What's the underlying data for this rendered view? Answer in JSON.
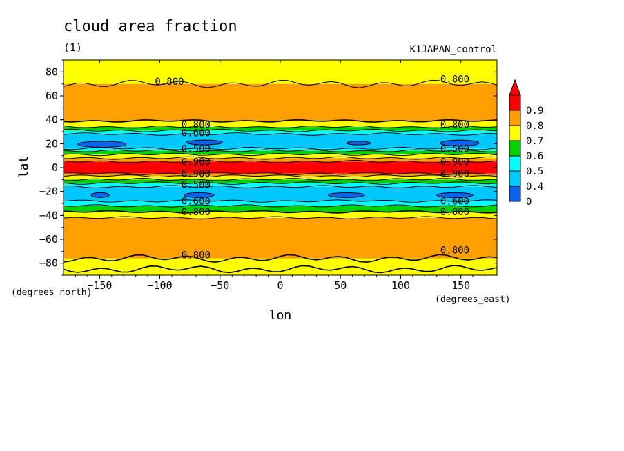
{
  "chart_data": {
    "type": "heatmap",
    "title": "cloud area fraction",
    "subtitle": "(1)",
    "run_label": "K1JAPAN_control",
    "xlabel": "lon",
    "ylabel": "lat",
    "x_units": "(degrees_east)",
    "y_units": "(degrees_north)",
    "xlim": [
      -180,
      180
    ],
    "ylim": [
      -90,
      90
    ],
    "x_ticks": [
      -150,
      -100,
      -50,
      0,
      50,
      100,
      150
    ],
    "y_ticks": [
      -80,
      -60,
      -40,
      -20,
      0,
      20,
      40,
      60,
      80
    ],
    "x_tick_labels": [
      "−150",
      "−100",
      "−50",
      "0",
      "50",
      "100",
      "150"
    ],
    "y_tick_labels": [
      "−80",
      "−60",
      "−40",
      "−20",
      "0",
      "20",
      "40",
      "60",
      "80"
    ],
    "colorbar": {
      "levels": [
        0,
        0.4,
        0.5,
        0.6,
        0.7,
        0.8,
        0.9
      ],
      "labels": [
        "0",
        "0.4",
        "0.5",
        "0.6",
        "0.7",
        "0.8",
        "0.9"
      ],
      "colors": [
        "#0a64f0",
        "#00c8ff",
        "#00ffff",
        "#00d200",
        "#ffff00",
        "#ffa000",
        "#ff0000"
      ],
      "extend": "max"
    },
    "lat_bands": [
      {
        "from": -90,
        "to": -85,
        "value": 0.75
      },
      {
        "from": -85,
        "to": -76,
        "value": 0.75
      },
      {
        "from": -76,
        "to": -42,
        "value": 0.85
      },
      {
        "from": -42,
        "to": -37,
        "value": 0.75
      },
      {
        "from": -37,
        "to": -32,
        "value": 0.65
      },
      {
        "from": -32,
        "to": -28,
        "value": 0.55
      },
      {
        "from": -28,
        "to": -16,
        "value": 0.45
      },
      {
        "from": -16,
        "to": -13,
        "value": 0.55
      },
      {
        "from": -13,
        "to": -10,
        "value": 0.65
      },
      {
        "from": -10,
        "to": -7,
        "value": 0.75
      },
      {
        "from": -7,
        "to": -5,
        "value": 0.85
      },
      {
        "from": -5,
        "to": 5,
        "value": 0.95
      },
      {
        "from": 5,
        "to": 8,
        "value": 0.85
      },
      {
        "from": 8,
        "to": 11,
        "value": 0.75
      },
      {
        "from": 11,
        "to": 14,
        "value": 0.65
      },
      {
        "from": 14,
        "to": 16,
        "value": 0.55
      },
      {
        "from": 16,
        "to": 28,
        "value": 0.45
      },
      {
        "from": 28,
        "to": 31,
        "value": 0.55
      },
      {
        "from": 31,
        "to": 34,
        "value": 0.65
      },
      {
        "from": 34,
        "to": 39,
        "value": 0.75
      },
      {
        "from": 39,
        "to": 70,
        "value": 0.85
      },
      {
        "from": 70,
        "to": 90,
        "value": 0.75
      }
    ],
    "low_patches": [
      {
        "lon_from": -168,
        "lon_to": -128,
        "lat_from": 17,
        "lat_to": 22,
        "value": 0.35
      },
      {
        "lon_from": -78,
        "lon_to": -48,
        "lat_from": 19,
        "lat_to": 23,
        "value": 0.35
      },
      {
        "lon_from": 55,
        "lon_to": 75,
        "lat_from": 19,
        "lat_to": 22,
        "value": 0.35
      },
      {
        "lon_from": 133,
        "lon_to": 165,
        "lat_from": 18,
        "lat_to": 23,
        "value": 0.35
      },
      {
        "lon_from": -157,
        "lon_to": -142,
        "lat_from": -25,
        "lat_to": -21,
        "value": 0.35
      },
      {
        "lon_from": -80,
        "lon_to": -55,
        "lat_from": -25,
        "lat_to": -21,
        "value": 0.35
      },
      {
        "lon_from": 40,
        "lon_to": 70,
        "lat_from": -25,
        "lat_to": -21,
        "value": 0.35
      },
      {
        "lon_from": 130,
        "lon_to": 160,
        "lat_from": -25,
        "lat_to": -21,
        "value": 0.35
      }
    ],
    "contour_lines_lat": [
      -85,
      -76,
      -42,
      -37,
      -32,
      -28,
      -16,
      -13,
      -10,
      -7,
      -5,
      5,
      8,
      11,
      14,
      16,
      28,
      31,
      34,
      39,
      70
    ],
    "contour_labels": [
      {
        "text": "0.800",
        "lon": -92,
        "lat": 72
      },
      {
        "text": "0.800",
        "lon": 145,
        "lat": 74
      },
      {
        "text": "0.800",
        "lon": -70,
        "lat": 36
      },
      {
        "text": "0.600",
        "lon": -70,
        "lat": 29
      },
      {
        "text": "0.500",
        "lon": -70,
        "lat": 16
      },
      {
        "text": "0.900",
        "lon": -70,
        "lat": 5
      },
      {
        "text": "0.900",
        "lon": -70,
        "lat": -5
      },
      {
        "text": "0.500",
        "lon": -70,
        "lat": -14
      },
      {
        "text": "0.600",
        "lon": -70,
        "lat": -28
      },
      {
        "text": "0.800",
        "lon": -70,
        "lat": -37
      },
      {
        "text": "0.800",
        "lon": 145,
        "lat": 36
      },
      {
        "text": "0.500",
        "lon": 145,
        "lat": 16
      },
      {
        "text": "0.900",
        "lon": 145,
        "lat": 5
      },
      {
        "text": "0.900",
        "lon": 145,
        "lat": -5
      },
      {
        "text": "0.600",
        "lon": 145,
        "lat": -28
      },
      {
        "text": "0.800",
        "lon": 145,
        "lat": -37
      },
      {
        "text": "0.800",
        "lon": 145,
        "lat": -69
      },
      {
        "text": "0.800",
        "lon": -70,
        "lat": -73
      }
    ]
  }
}
